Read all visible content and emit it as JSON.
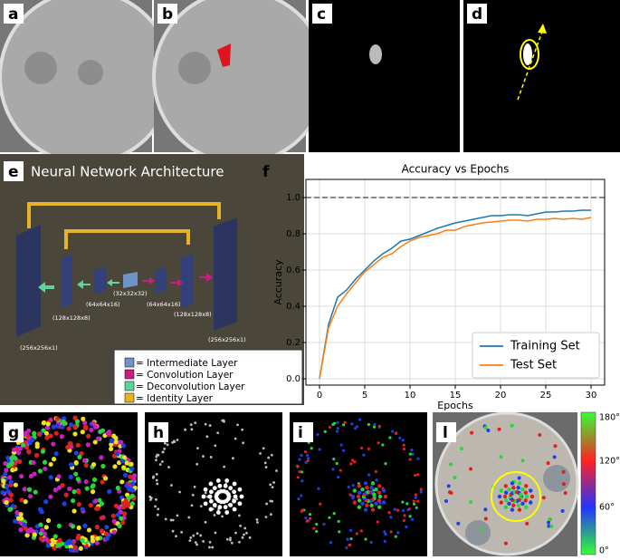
{
  "panels": {
    "labels": [
      "a",
      "b",
      "c",
      "d",
      "e",
      "f",
      "g",
      "h",
      "i",
      "l"
    ]
  },
  "architecture": {
    "title": "Neural Network Architecture",
    "dims": [
      "(256x256x1)",
      "(128x128x8)",
      "(64x64x16)",
      "(32x32x32)",
      "(64x64x16)",
      "(128x128x8)",
      "(256x256x1)"
    ],
    "legend": [
      "= Intermediate Layer",
      "= Convolution Layer",
      "= Deconvolution Layer",
      "= Identity Layer"
    ]
  },
  "chart_data": {
    "type": "line",
    "title": "Accuracy vs Epochs",
    "x_label": "Epochs",
    "y_label": "Accuracy",
    "x": [
      0,
      1,
      2,
      3,
      4,
      5,
      6,
      7,
      8,
      9,
      10,
      11,
      12,
      13,
      14,
      15,
      16,
      17,
      18,
      19,
      20,
      21,
      22,
      23,
      24,
      25,
      26,
      27,
      28,
      29,
      30
    ],
    "series": [
      {
        "name": "Training Set",
        "color": "#1f77b4",
        "values": [
          0,
          0.3,
          0.45,
          0.49,
          0.55,
          0.6,
          0.65,
          0.69,
          0.72,
          0.76,
          0.77,
          0.79,
          0.81,
          0.83,
          0.845,
          0.86,
          0.87,
          0.88,
          0.89,
          0.9,
          0.9,
          0.905,
          0.905,
          0.9,
          0.91,
          0.92,
          0.92,
          0.925,
          0.925,
          0.93,
          0.93
        ]
      },
      {
        "name": "Test Set",
        "color": "#ff7f0e",
        "values": [
          0,
          0.28,
          0.4,
          0.47,
          0.53,
          0.59,
          0.63,
          0.67,
          0.69,
          0.73,
          0.76,
          0.78,
          0.79,
          0.8,
          0.82,
          0.82,
          0.84,
          0.85,
          0.86,
          0.865,
          0.87,
          0.875,
          0.875,
          0.87,
          0.88,
          0.88,
          0.885,
          0.88,
          0.885,
          0.88,
          0.89
        ]
      }
    ],
    "xlim": [
      -1.5,
      31.5
    ],
    "ylim": [
      -0.035,
      1.1
    ],
    "xticks": [
      0,
      5,
      10,
      15,
      20,
      25,
      30
    ],
    "yticks": [
      {
        "value": 0,
        "label": "0.0"
      },
      0.2,
      0.4,
      0.6,
      0.8,
      {
        "value": 1,
        "label": "1.0"
      }
    ],
    "reference_line": 1,
    "grid": true,
    "legend": "lower right"
  },
  "colorbar": {
    "labels": [
      "180°",
      "120°",
      "60°",
      "0°"
    ]
  }
}
